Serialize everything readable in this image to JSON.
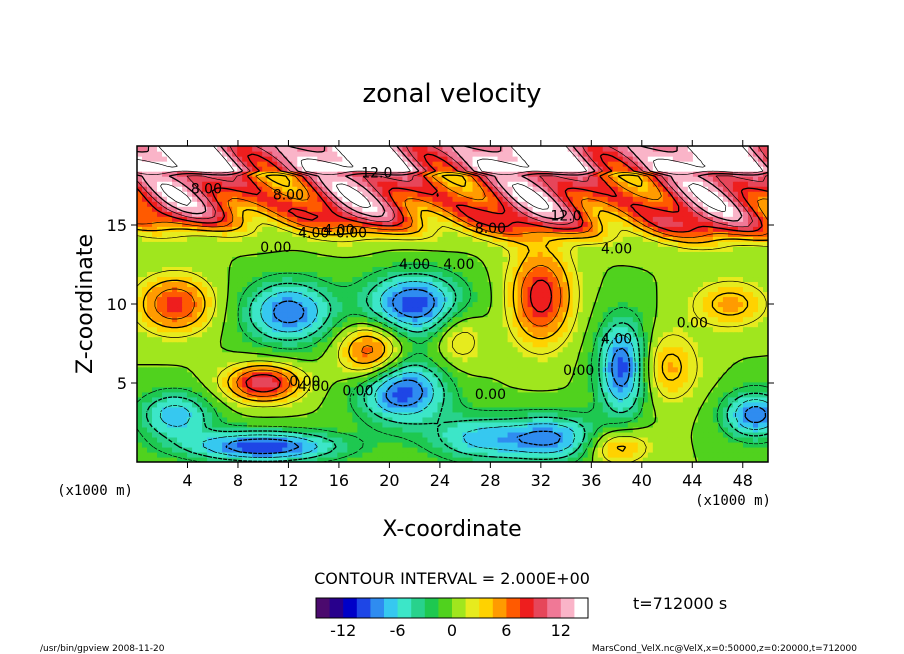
{
  "chart_data": {
    "type": "heatmap",
    "title": "zonal velocity",
    "xlabel": "X-coordinate",
    "ylabel": "Z-coordinate",
    "x_unit_label": "(x1000 m)",
    "y_unit_label": "(x1000 m)",
    "xlim": [
      0,
      50
    ],
    "ylim": [
      0,
      20
    ],
    "x_ticks": [
      4,
      8,
      12,
      16,
      20,
      24,
      28,
      32,
      36,
      40,
      44,
      48
    ],
    "y_ticks": [
      5,
      10,
      15
    ],
    "colorbar": {
      "ticks": [
        -12,
        -6,
        0,
        6,
        12
      ],
      "vmin": -15,
      "vmax": 15,
      "colors": [
        "#4b0a6e",
        "#28008c",
        "#0000c8",
        "#1e46e6",
        "#2f8cf0",
        "#36c8f0",
        "#3ce6c8",
        "#28d28c",
        "#1ec850",
        "#50d21e",
        "#a0e61e",
        "#e6eb1e",
        "#ffd200",
        "#ff9b00",
        "#ff5a00",
        "#ee1e1e",
        "#e6465a",
        "#f07896",
        "#fab4c8",
        "#ffffff"
      ]
    },
    "contour_labels": [
      "8.00",
      "12.0",
      "8.00",
      "12.0",
      "8.00",
      "4.00",
      "0.00",
      "4.00",
      "4.00",
      "0.00",
      "4.00",
      "4.00",
      "0.00",
      "4.00",
      "0.00",
      "0.00",
      "0.00",
      "0.00",
      "4.00"
    ],
    "contour_interval_text": "CONTOUR INTERVAL = 2.000E+00",
    "time_text": "t=712000 s"
  },
  "footer": {
    "left": "/usr/bin/gpview   2008-11-20",
    "right": "MarsCond_VelX.nc@VelX,x=0:50000,z=0:20000,t=712000"
  }
}
